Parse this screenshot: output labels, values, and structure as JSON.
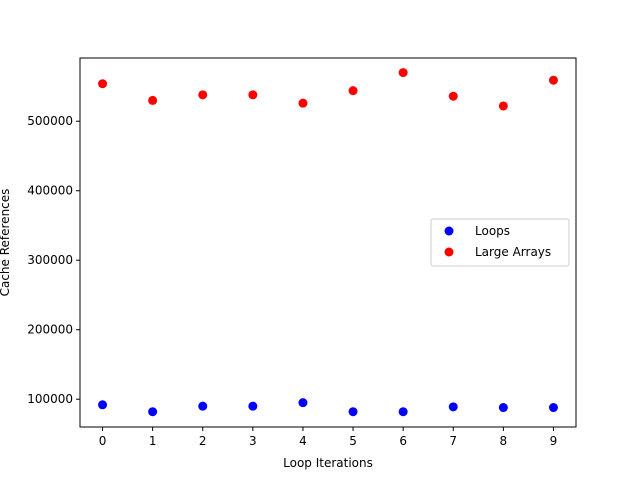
{
  "chart_data": {
    "type": "scatter",
    "title": "",
    "xlabel": "Loop Iterations",
    "ylabel": "Cache References",
    "x": [
      0,
      1,
      2,
      3,
      4,
      5,
      6,
      7,
      8,
      9
    ],
    "xlim": [
      -0.45,
      9.45
    ],
    "ylim": [
      60000,
      591000
    ],
    "xticks": [
      0,
      1,
      2,
      3,
      4,
      5,
      6,
      7,
      8,
      9
    ],
    "yticks": [
      100000,
      200000,
      300000,
      400000,
      500000
    ],
    "grid": false,
    "legend_position": "center-right",
    "series": [
      {
        "name": "Loops",
        "color": "#0000ff",
        "values": [
          92000,
          82000,
          90000,
          90000,
          95000,
          82000,
          82000,
          89000,
          88000,
          88000
        ]
      },
      {
        "name": "Large Arrays",
        "color": "#ff0000",
        "values": [
          554000,
          530000,
          538000,
          538000,
          526000,
          544000,
          570000,
          536000,
          522000,
          559000
        ]
      }
    ]
  }
}
